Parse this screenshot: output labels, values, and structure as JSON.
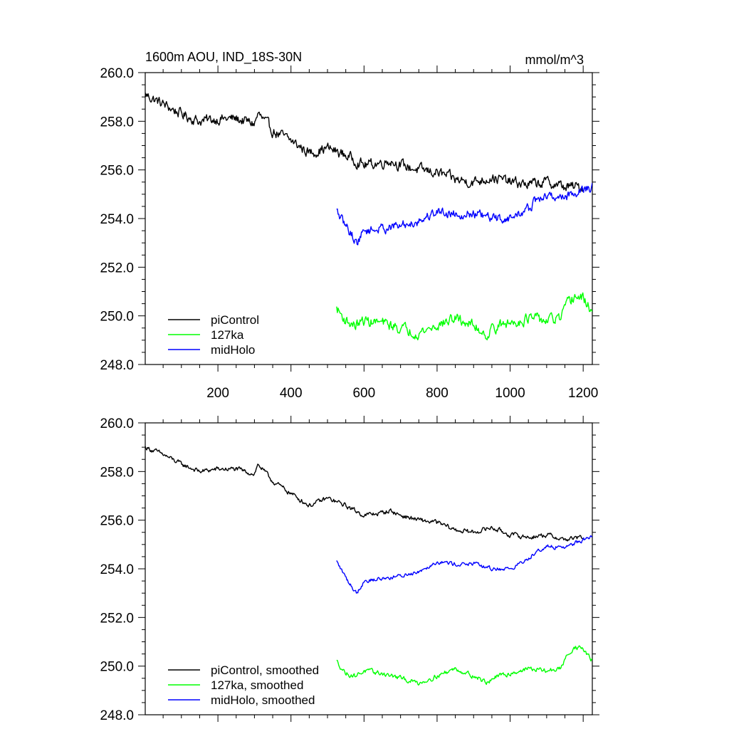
{
  "chart_data": [
    {
      "type": "line",
      "title": "1600m AOU, IND_18S-30N",
      "units": "mmol/m^3",
      "xlim": [
        1,
        1225
      ],
      "ylim": [
        248.0,
        260.0
      ],
      "x_ticks": [
        200,
        400,
        600,
        800,
        1000,
        1200
      ],
      "x_tick_labels": [
        "200",
        "400",
        "600",
        "800",
        "1000",
        "1200"
      ],
      "y_ticks": [
        248.0,
        250.0,
        252.0,
        254.0,
        256.0,
        258.0,
        260.0
      ],
      "y_tick_labels": [
        "248.0",
        "250.0",
        "252.0",
        "254.0",
        "256.0",
        "258.0",
        "260.0"
      ],
      "grid": false,
      "legend_position": "bottom-left",
      "series": [
        {
          "name": "piControl",
          "color": "#000000",
          "noise": 0.18,
          "x": [
            1,
            50,
            100,
            150,
            200,
            250,
            300,
            310,
            350,
            400,
            450,
            500,
            550,
            600,
            650,
            670,
            700,
            750,
            800,
            850,
            900,
            950,
            1000,
            1050,
            1100,
            1150,
            1200
          ],
          "y": [
            259.1,
            258.7,
            258.3,
            258.0,
            258.1,
            258.1,
            257.9,
            258.3,
            257.6,
            257.2,
            256.7,
            256.9,
            256.6,
            256.2,
            256.3,
            256.4,
            256.2,
            256.0,
            255.9,
            255.6,
            255.5,
            255.7,
            255.5,
            255.4,
            255.5,
            255.3,
            255.3
          ]
        },
        {
          "name": "127ka",
          "color": "#00ff00",
          "noise": 0.18,
          "x": [
            525,
            550,
            575,
            600,
            650,
            700,
            750,
            800,
            850,
            900,
            940,
            950,
            1000,
            1050,
            1100,
            1140,
            1150,
            1175,
            1200,
            1225
          ],
          "y": [
            250.3,
            249.8,
            249.6,
            249.8,
            249.7,
            249.5,
            249.3,
            249.6,
            249.9,
            249.6,
            249.2,
            249.5,
            249.7,
            249.9,
            249.8,
            249.9,
            250.3,
            250.8,
            250.7,
            250.2
          ]
        },
        {
          "name": "midHolo",
          "color": "#0000ff",
          "noise": 0.16,
          "x": [
            525,
            540,
            560,
            580,
            600,
            650,
            700,
            750,
            800,
            850,
            900,
            950,
            1000,
            1050,
            1075,
            1100,
            1150,
            1200,
            1225
          ],
          "y": [
            254.3,
            253.9,
            253.5,
            253.0,
            253.5,
            253.6,
            253.7,
            253.9,
            254.3,
            254.2,
            254.2,
            254.0,
            254.0,
            254.4,
            254.8,
            254.9,
            254.9,
            255.2,
            255.3
          ]
        }
      ]
    },
    {
      "type": "line",
      "title": "",
      "units": "",
      "xlim": [
        1,
        1225
      ],
      "ylim": [
        248.0,
        260.0
      ],
      "x_ticks": [
        200,
        400,
        600,
        800,
        1000,
        1200
      ],
      "x_tick_labels": [],
      "y_ticks": [
        248.0,
        250.0,
        252.0,
        254.0,
        256.0,
        258.0,
        260.0
      ],
      "y_tick_labels": [
        "248.0",
        "250.0",
        "252.0",
        "254.0",
        "256.0",
        "258.0",
        "260.0"
      ],
      "grid": false,
      "legend_position": "bottom-left",
      "series": [
        {
          "name": "piControl, smoothed",
          "color": "#000000",
          "noise": 0.08,
          "x": [
            1,
            50,
            100,
            150,
            200,
            250,
            300,
            310,
            350,
            400,
            450,
            500,
            550,
            600,
            650,
            670,
            700,
            750,
            800,
            850,
            900,
            950,
            1000,
            1050,
            1100,
            1150,
            1200
          ],
          "y": [
            259.0,
            258.7,
            258.3,
            258.0,
            258.1,
            258.1,
            257.9,
            258.3,
            257.6,
            257.1,
            256.6,
            256.9,
            256.6,
            256.2,
            256.3,
            256.4,
            256.2,
            256.0,
            255.9,
            255.6,
            255.5,
            255.7,
            255.4,
            255.3,
            255.4,
            255.2,
            255.3
          ]
        },
        {
          "name": "127ka, smoothed",
          "color": "#00ff00",
          "noise": 0.08,
          "x": [
            525,
            550,
            575,
            600,
            650,
            700,
            750,
            800,
            850,
            900,
            940,
            950,
            1000,
            1050,
            1100,
            1140,
            1150,
            1175,
            1200,
            1225
          ],
          "y": [
            250.2,
            249.7,
            249.6,
            249.8,
            249.7,
            249.5,
            249.3,
            249.6,
            249.9,
            249.6,
            249.3,
            249.5,
            249.7,
            249.9,
            249.8,
            249.9,
            250.3,
            250.8,
            250.7,
            250.2
          ]
        },
        {
          "name": "midHolo, smoothed",
          "color": "#0000ff",
          "noise": 0.07,
          "x": [
            525,
            540,
            560,
            580,
            600,
            650,
            700,
            750,
            800,
            850,
            900,
            950,
            1000,
            1050,
            1075,
            1100,
            1150,
            1200,
            1225
          ],
          "y": [
            254.3,
            253.9,
            253.4,
            253.0,
            253.5,
            253.6,
            253.7,
            253.9,
            254.3,
            254.2,
            254.2,
            254.0,
            254.0,
            254.4,
            254.8,
            254.9,
            254.9,
            255.2,
            255.3
          ]
        }
      ]
    }
  ]
}
